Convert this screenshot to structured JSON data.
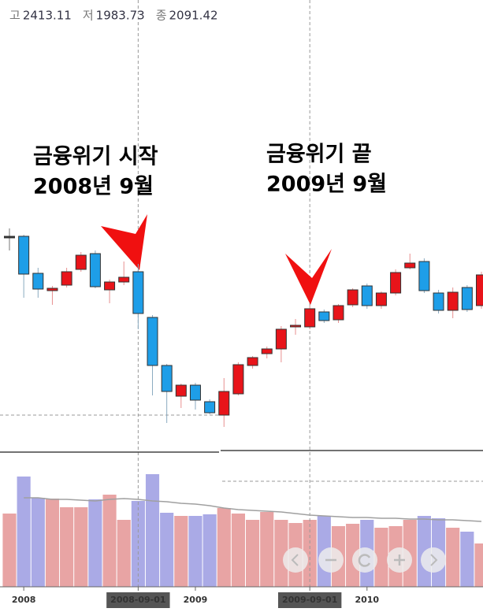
{
  "header": [
    {
      "label": "고",
      "value": 2413.11
    },
    {
      "label": "저",
      "value": 1983.73
    },
    {
      "label": "종",
      "value": 2091.42
    }
  ],
  "chart_data": {
    "type": "candlestick",
    "categories": [
      null,
      "2008",
      null,
      null,
      null,
      null,
      null,
      null,
      null,
      "2008-09-01",
      null,
      null,
      null,
      "2009",
      null,
      null,
      null,
      null,
      null,
      null,
      null,
      "2009-09-01",
      null,
      null,
      null,
      "2010",
      null,
      null,
      null,
      null,
      null,
      null,
      null,
      null
    ],
    "open": [
      270,
      270,
      223,
      201,
      208,
      228,
      248,
      202,
      212,
      225,
      167,
      106,
      67,
      81,
      60,
      43,
      70,
      106,
      121,
      127,
      155,
      155,
      174,
      164,
      183,
      207,
      182,
      198,
      230,
      238,
      198,
      176,
      205,
      182
    ],
    "high": [
      280,
      272,
      230,
      207,
      230,
      250,
      252,
      215,
      238,
      235,
      170,
      108,
      83,
      84,
      63,
      90,
      110,
      118,
      130,
      156,
      165,
      182,
      177,
      184,
      204,
      210,
      200,
      228,
      248,
      242,
      202,
      205,
      208,
      225
    ],
    "low": [
      252,
      192,
      192,
      183,
      205,
      225,
      204,
      185,
      208,
      152,
      68,
      33,
      52,
      50,
      44,
      28,
      68,
      102,
      115,
      110,
      145,
      152,
      160,
      160,
      180,
      178,
      178,
      195,
      228,
      198,
      172,
      166,
      174,
      178
    ],
    "close": [
      270,
      222,
      203,
      204,
      225,
      246,
      206,
      212,
      218,
      172,
      106,
      73,
      81,
      62,
      46,
      73,
      107,
      116,
      127,
      152,
      157,
      178,
      163,
      182,
      202,
      182,
      198,
      224,
      236,
      201,
      176,
      199,
      177,
      221
    ],
    "ylim": [
      0,
      530
    ],
    "up_color": "#e8141a",
    "down_color": "#1e9ee8",
    "flat_color": "#333333",
    "volume": {
      "values": [
        93,
        140,
        113,
        112,
        101,
        101,
        111,
        117,
        85,
        109,
        143,
        94,
        90,
        90,
        92,
        100,
        93,
        85,
        95,
        85,
        81,
        85,
        90,
        77,
        80,
        85,
        75,
        77,
        85,
        90,
        87,
        75,
        70,
        55
      ],
      "ma": [
        null,
        113,
        113,
        111,
        111,
        110,
        109,
        111,
        112,
        111,
        109,
        108,
        106,
        105,
        103,
        100,
        98,
        97,
        96,
        95,
        93,
        91,
        90,
        89,
        88,
        88,
        87,
        87,
        86,
        86,
        85,
        85,
        84,
        83
      ],
      "ylim": [
        0,
        170
      ],
      "up_color": "#e8a4a4",
      "down_color": "#aaaae6",
      "ma_color": "#a0a0a0"
    },
    "annotations": [
      {
        "x": "2008-09-01",
        "lines": [
          "금융위기 시작",
          "2008년 9월"
        ]
      },
      {
        "x": "2009-09-01",
        "lines": [
          "금융위기 끝",
          "2009년 9월"
        ]
      }
    ]
  }
}
